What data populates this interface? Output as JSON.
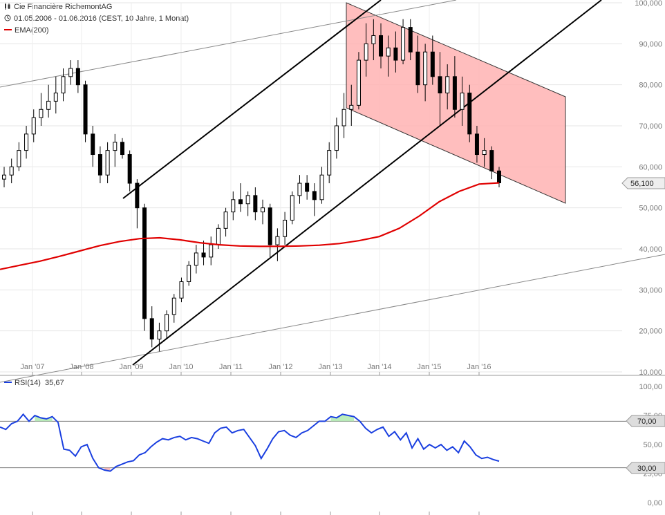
{
  "header": {
    "title": "Cie Financière RichemontAG",
    "range": "01.05.2006 - 01.06.2016 (CEST, 10 Jahre, 1 Monat)",
    "ema_label": "EMA(200)",
    "rsi_label": "RSI(14)",
    "rsi_value": "35,67"
  },
  "colors": {
    "ema": "#e00000",
    "rsi": "#1a3fe0",
    "channel_fill": "#ffb3b3",
    "trendline": "#000000",
    "grid": "#cccccc"
  },
  "chart_data": [
    {
      "type": "candlestick",
      "ylim": [
        10000,
        100000
      ],
      "x_tick_labels": [
        "Jan '07",
        "Jan '08",
        "Jan '09",
        "Jan '10",
        "Jan '11",
        "Jan '12",
        "Jan '13",
        "Jan '14",
        "Jan '15",
        "Jan '16"
      ],
      "y_tick_labels": [
        "100,000",
        "90,000",
        "80,000",
        "70,000",
        "60,000",
        "50,000",
        "40,000",
        "30,000",
        "20,000",
        "10,000"
      ],
      "last_price_label": "56,100",
      "series": [
        {
          "name": "Cie Financière RichemontAG",
          "ohlc": [
            [
              57000,
              60000,
              55000,
              58000
            ],
            [
              58000,
              62000,
              56000,
              60000
            ],
            [
              60000,
              66000,
              59000,
              64000
            ],
            [
              64000,
              70000,
              62000,
              68000
            ],
            [
              68000,
              74000,
              66000,
              72000
            ],
            [
              72000,
              78000,
              70000,
              74000
            ],
            [
              74000,
              80000,
              72000,
              76000
            ],
            [
              76000,
              82000,
              73000,
              78000
            ],
            [
              78000,
              84000,
              76000,
              82000
            ],
            [
              82000,
              86000,
              80000,
              84000
            ],
            [
              84000,
              86000,
              78000,
              80000
            ],
            [
              80000,
              81000,
              66000,
              68000
            ],
            [
              68000,
              70000,
              60000,
              63000
            ],
            [
              63000,
              65000,
              56000,
              58000
            ],
            [
              58000,
              66000,
              56000,
              64000
            ],
            [
              64000,
              68000,
              60000,
              66000
            ],
            [
              66000,
              67000,
              62000,
              63000
            ],
            [
              63000,
              64000,
              54000,
              56000
            ],
            [
              56000,
              57000,
              45000,
              50000
            ],
            [
              50000,
              51000,
              20000,
              23000
            ],
            [
              23000,
              26000,
              16000,
              18000
            ],
            [
              18000,
              22000,
              15000,
              20000
            ],
            [
              20000,
              25000,
              18000,
              24000
            ],
            [
              24000,
              29000,
              22000,
              28000
            ],
            [
              28000,
              33000,
              27000,
              32000
            ],
            [
              32000,
              37000,
              31000,
              36000
            ],
            [
              36000,
              41000,
              34000,
              39000
            ],
            [
              39000,
              42000,
              36000,
              38000
            ],
            [
              38000,
              43000,
              36000,
              41000
            ],
            [
              41000,
              46000,
              40000,
              45000
            ],
            [
              45000,
              50000,
              43000,
              49000
            ],
            [
              49000,
              54000,
              47000,
              52000
            ],
            [
              52000,
              56000,
              49000,
              51000
            ],
            [
              51000,
              54000,
              48000,
              53000
            ],
            [
              53000,
              55000,
              47000,
              49000
            ],
            [
              49000,
              52000,
              46000,
              50000
            ],
            [
              50000,
              51000,
              38000,
              41000
            ],
            [
              41000,
              45000,
              37000,
              43000
            ],
            [
              43000,
              49000,
              41000,
              47000
            ],
            [
              47000,
              54000,
              46000,
              53000
            ],
            [
              53000,
              58000,
              51000,
              56000
            ],
            [
              56000,
              58000,
              52000,
              54000
            ],
            [
              54000,
              56000,
              48000,
              52000
            ],
            [
              52000,
              60000,
              51000,
              58000
            ],
            [
              58000,
              66000,
              56000,
              64000
            ],
            [
              64000,
              72000,
              62000,
              70000
            ],
            [
              70000,
              78000,
              67000,
              74000
            ],
            [
              74000,
              80000,
              70000,
              75000
            ],
            [
              75000,
              88000,
              74000,
              86000
            ],
            [
              86000,
              95000,
              82000,
              90000
            ],
            [
              90000,
              96000,
              86000,
              92000
            ],
            [
              92000,
              95000,
              84000,
              87000
            ],
            [
              87000,
              92000,
              82000,
              89000
            ],
            [
              89000,
              93000,
              83000,
              86000
            ],
            [
              86000,
              96000,
              85000,
              94000
            ],
            [
              94000,
              96000,
              86000,
              88000
            ],
            [
              88000,
              92000,
              78000,
              80000
            ],
            [
              80000,
              90000,
              76000,
              88000
            ],
            [
              88000,
              92000,
              80000,
              82000
            ],
            [
              82000,
              88000,
              70000,
              78000
            ],
            [
              78000,
              85000,
              74000,
              82000
            ],
            [
              82000,
              87000,
              72000,
              74000
            ],
            [
              74000,
              82000,
              70000,
              78000
            ],
            [
              78000,
              80000,
              66000,
              68000
            ],
            [
              68000,
              70000,
              61000,
              63000
            ],
            [
              63000,
              67000,
              60000,
              64000
            ],
            [
              64000,
              65000,
              57000,
              59000
            ],
            [
              59000,
              60000,
              55000,
              56100
            ]
          ]
        },
        {
          "name": "EMA(200)",
          "values": [
            35000,
            36000,
            37000,
            38200,
            39500,
            40800,
            41800,
            42500,
            42700,
            42200,
            41500,
            41000,
            40700,
            40600,
            40600,
            40700,
            40900,
            41300,
            42000,
            43000,
            45000,
            48000,
            51500,
            54000,
            55800,
            56100
          ]
        }
      ]
    },
    {
      "type": "line",
      "name": "RSI(14)",
      "ylim": [
        0,
        100
      ],
      "y_tick_labels": [
        "100,00",
        "75,00",
        "50,00",
        "25,00",
        "0,00"
      ],
      "level_labels": [
        "70,00",
        "30,00"
      ],
      "values": [
        65,
        63,
        68,
        70,
        76,
        70,
        75,
        73,
        72,
        74,
        69,
        46,
        45,
        40,
        48,
        50,
        38,
        30,
        28,
        27,
        31,
        33,
        35,
        36,
        41,
        43,
        48,
        52,
        55,
        54,
        56,
        57,
        54,
        56,
        55,
        53,
        51,
        60,
        64,
        65,
        60,
        62,
        63,
        56,
        49,
        38,
        46,
        55,
        61,
        62,
        58,
        56,
        60,
        62,
        66,
        70,
        70,
        74,
        73,
        76,
        75,
        74,
        70,
        64,
        60,
        63,
        65,
        57,
        61,
        54,
        60,
        47,
        55,
        46,
        50,
        47,
        50,
        45,
        48,
        43,
        53,
        48,
        41,
        38,
        39,
        37,
        35.67
      ]
    }
  ]
}
